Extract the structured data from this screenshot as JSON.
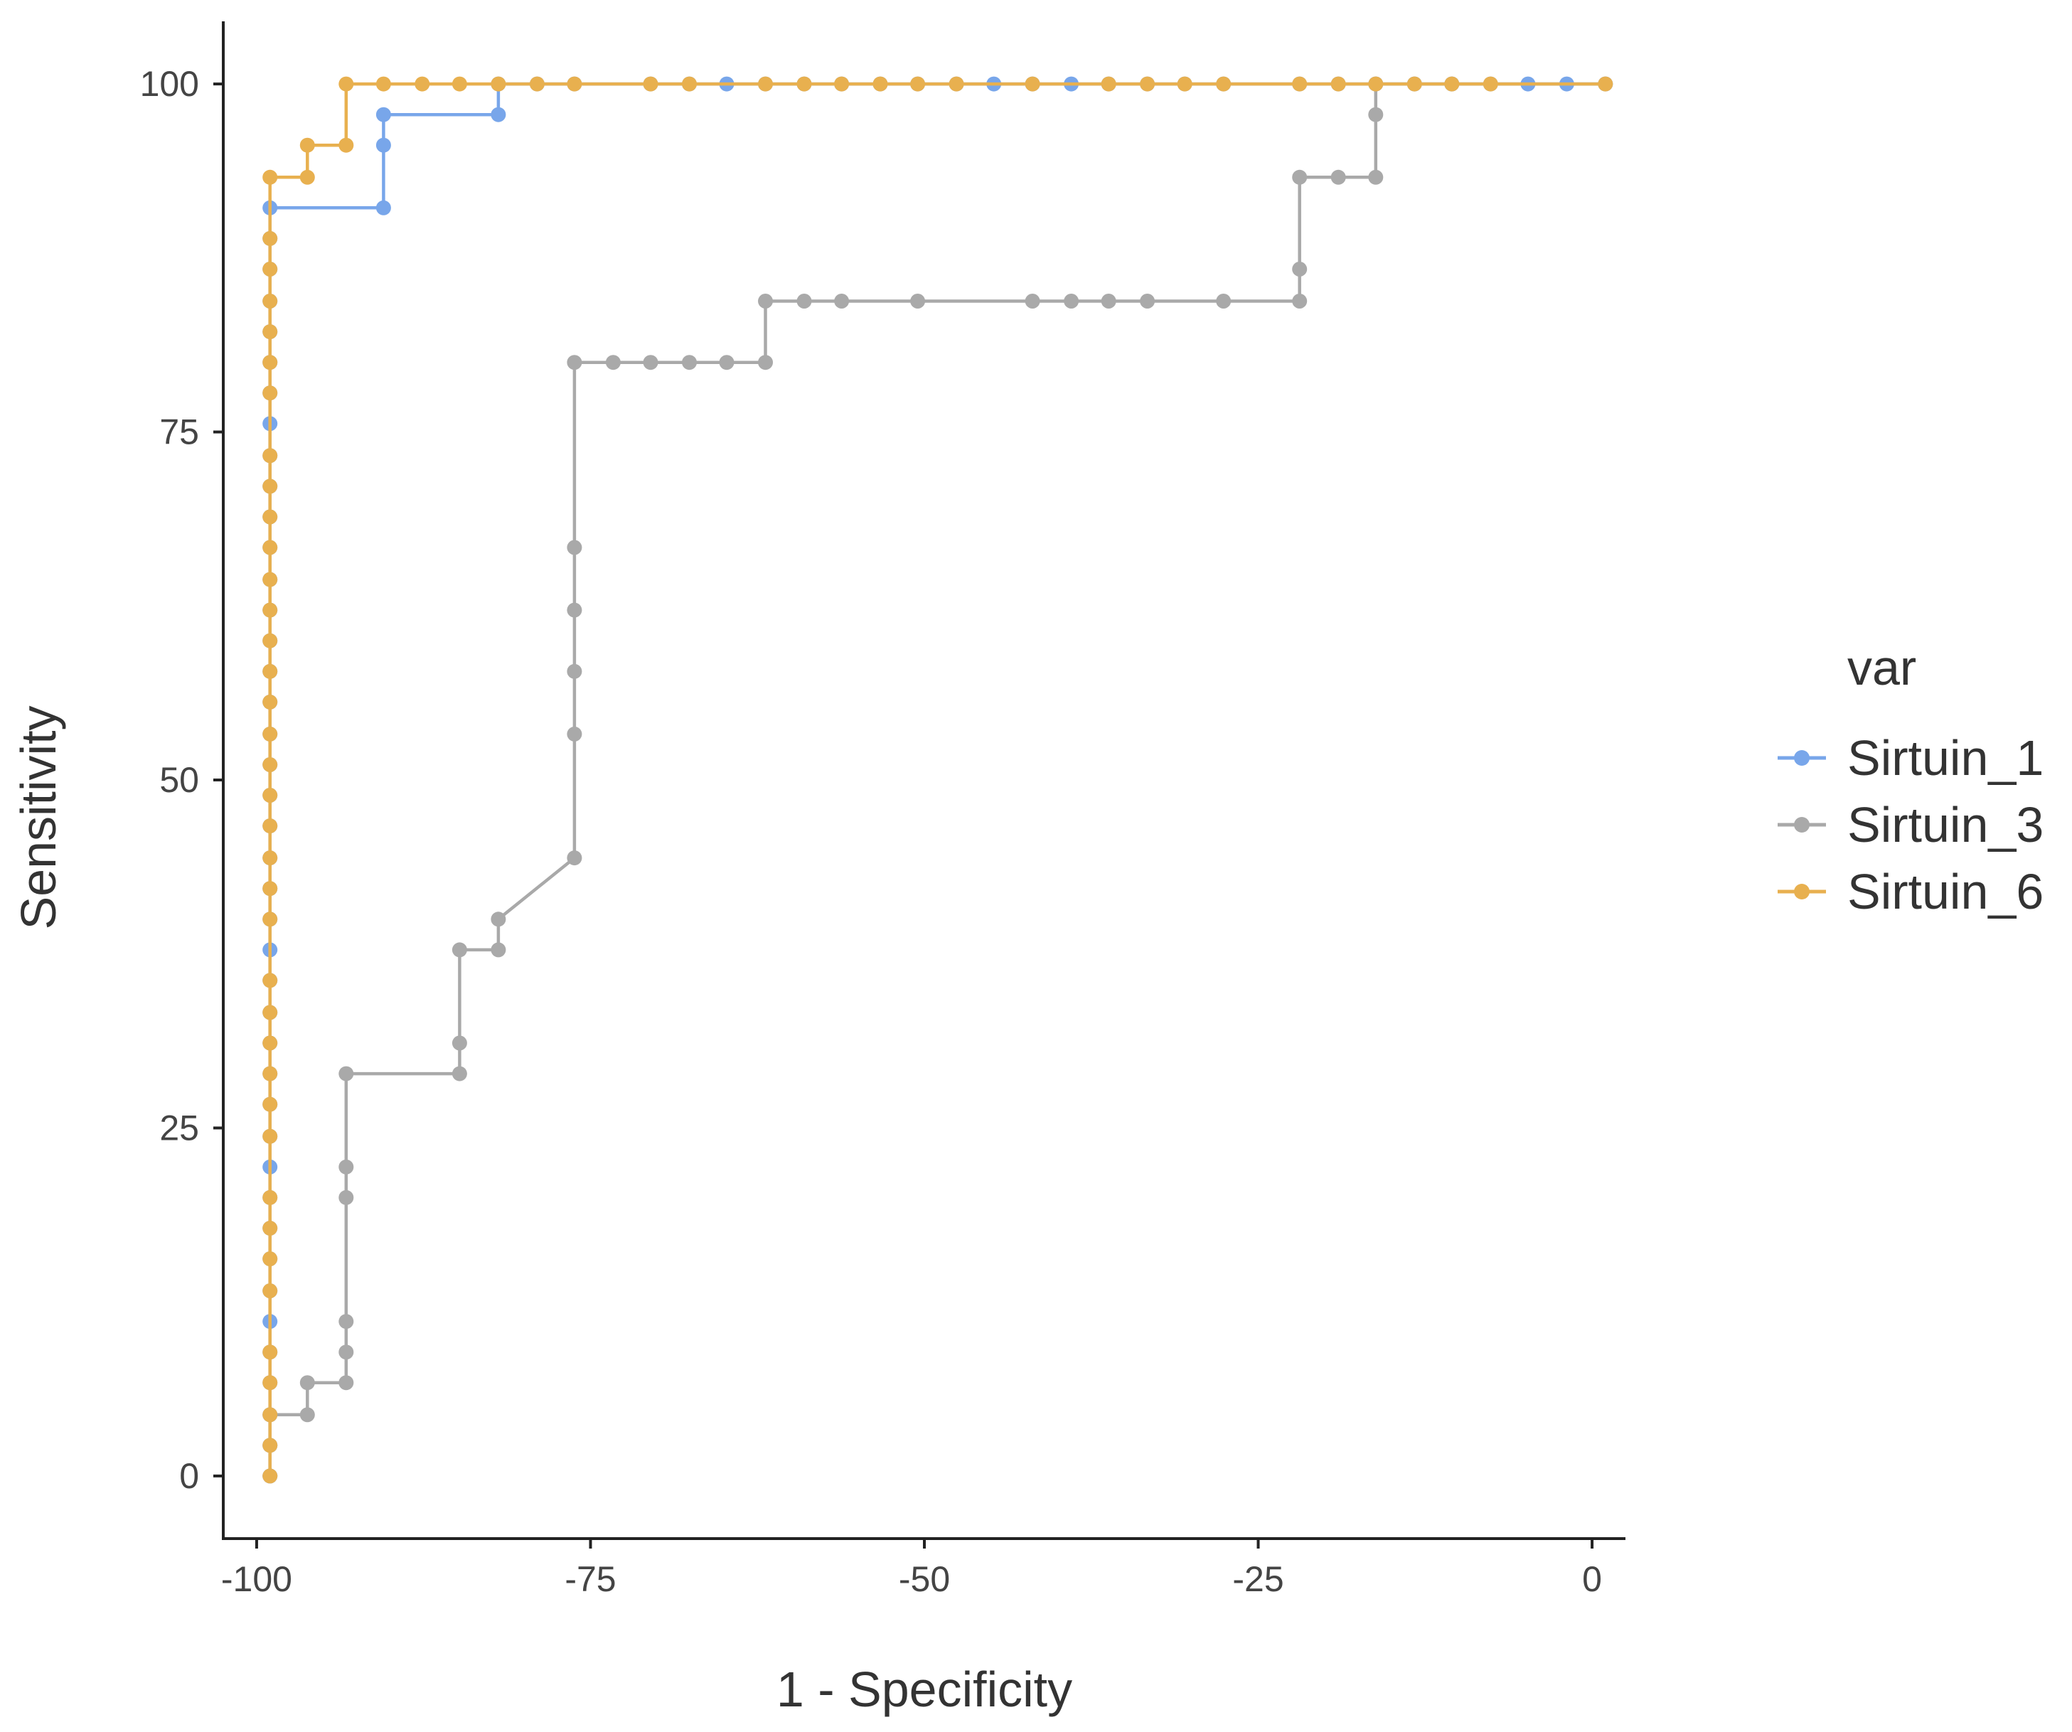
{
  "chart_data": {
    "type": "line",
    "step": true,
    "title": "",
    "xlabel": "1 - Specificity",
    "ylabel": "Sensitivity",
    "xlim": [
      -102.5,
      2.5
    ],
    "ylim": [
      -4.5,
      104.5
    ],
    "xticks": [
      -100,
      -75,
      -50,
      -25,
      0
    ],
    "xtick_labels": [
      "-100",
      "-75",
      "-50",
      "-25",
      "0"
    ],
    "yticks": [
      0,
      25,
      50,
      75,
      100
    ],
    "ytick_labels": [
      "0",
      "25",
      "50",
      "75",
      "100"
    ],
    "grid": false,
    "legend": {
      "title": "var",
      "position": "right",
      "entries": [
        "Sirtuin_1",
        "Sirtuin_3",
        "Sirtuin_6"
      ]
    },
    "series": [
      {
        "name": "Sirtuin_1",
        "color": "#78a6ea",
        "points": [
          [
            -99,
            0
          ],
          [
            -99,
            2.2
          ],
          [
            -99,
            4.4
          ],
          [
            -99,
            6.7
          ],
          [
            -99,
            8.9
          ],
          [
            -99,
            11.1
          ],
          [
            -99,
            13.3
          ],
          [
            -99,
            15.6
          ],
          [
            -99,
            17.8
          ],
          [
            -99,
            20
          ],
          [
            -99,
            22.2
          ],
          [
            -99,
            24.4
          ],
          [
            -99,
            26.7
          ],
          [
            -99,
            28.9
          ],
          [
            -99,
            31.1
          ],
          [
            -99,
            33.3
          ],
          [
            -99,
            35.6
          ],
          [
            -99,
            37.8
          ],
          [
            -99,
            40
          ],
          [
            -99,
            42.2
          ],
          [
            -99,
            44.4
          ],
          [
            -99,
            46.7
          ],
          [
            -99,
            48.9
          ],
          [
            -99,
            51.1
          ],
          [
            -99,
            53.3
          ],
          [
            -99,
            55.6
          ],
          [
            -99,
            57.8
          ],
          [
            -99,
            60
          ],
          [
            -99,
            62.2
          ],
          [
            -99,
            64.4
          ],
          [
            -99,
            66.7
          ],
          [
            -99,
            68.9
          ],
          [
            -99,
            71.1
          ],
          [
            -99,
            73.3
          ],
          [
            -99,
            75.6
          ],
          [
            -99,
            77.8
          ],
          [
            -99,
            80
          ],
          [
            -99,
            82.2
          ],
          [
            -99,
            84.4
          ],
          [
            -99,
            86.7
          ],
          [
            -99,
            88.9
          ],
          [
            -99,
            91.1
          ],
          [
            -90.5,
            91.1
          ],
          [
            -90.5,
            95.6
          ],
          [
            -90.5,
            97.8
          ],
          [
            -81.9,
            97.8
          ],
          [
            -81.9,
            100
          ],
          [
            -79,
            100
          ],
          [
            -76.2,
            100
          ],
          [
            -70.5,
            100
          ],
          [
            -67.6,
            100
          ],
          [
            -64.8,
            100
          ],
          [
            -61.9,
            100
          ],
          [
            -59,
            100
          ],
          [
            -56.2,
            100
          ],
          [
            -53.3,
            100
          ],
          [
            -50.5,
            100
          ],
          [
            -47.6,
            100
          ],
          [
            -44.8,
            100
          ],
          [
            -41.9,
            100
          ],
          [
            -39,
            100
          ],
          [
            -36.2,
            100
          ],
          [
            -33.3,
            100
          ],
          [
            -30.5,
            100
          ],
          [
            -27.6,
            100
          ],
          [
            -21.9,
            100
          ],
          [
            -19,
            100
          ],
          [
            -16.2,
            100
          ],
          [
            -13.3,
            100
          ],
          [
            -10.5,
            100
          ],
          [
            -7.6,
            100
          ],
          [
            -4.8,
            100
          ],
          [
            -1.9,
            100
          ],
          [
            1,
            100
          ]
        ]
      },
      {
        "name": "Sirtuin_3",
        "color": "#a9a9a9",
        "points": [
          [
            -99,
            0
          ],
          [
            -99,
            2.2
          ],
          [
            -99,
            4.4
          ],
          [
            -96.2,
            4.4
          ],
          [
            -96.2,
            6.7
          ],
          [
            -93.3,
            6.7
          ],
          [
            -93.3,
            8.9
          ],
          [
            -93.3,
            11.1
          ],
          [
            -93.3,
            20
          ],
          [
            -93.3,
            22.2
          ],
          [
            -93.3,
            28.9
          ],
          [
            -84.8,
            28.9
          ],
          [
            -84.8,
            31.1
          ],
          [
            -84.8,
            37.8
          ],
          [
            -81.9,
            37.8
          ],
          [
            -81.9,
            40
          ],
          [
            -76.2,
            44.4
          ],
          [
            -76.2,
            53.3
          ],
          [
            -76.2,
            57.8
          ],
          [
            -76.2,
            62.2
          ],
          [
            -76.2,
            66.7
          ],
          [
            -76.2,
            80
          ],
          [
            -73.3,
            80
          ],
          [
            -70.5,
            80
          ],
          [
            -67.6,
            80
          ],
          [
            -64.8,
            80
          ],
          [
            -61.9,
            80
          ],
          [
            -61.9,
            84.4
          ],
          [
            -59,
            84.4
          ],
          [
            -56.2,
            84.4
          ],
          [
            -50.5,
            84.4
          ],
          [
            -41.9,
            84.4
          ],
          [
            -39,
            84.4
          ],
          [
            -36.2,
            84.4
          ],
          [
            -33.3,
            84.4
          ],
          [
            -27.6,
            84.4
          ],
          [
            -21.9,
            84.4
          ],
          [
            -21.9,
            86.7
          ],
          [
            -21.9,
            93.3
          ],
          [
            -19,
            93.3
          ],
          [
            -16.2,
            93.3
          ],
          [
            -16.2,
            97.8
          ],
          [
            -16.2,
            100
          ],
          [
            -13.3,
            100
          ],
          [
            -10.5,
            100
          ],
          [
            1,
            100
          ]
        ]
      },
      {
        "name": "Sirtuin_6",
        "color": "#e8b04f",
        "points": [
          [
            -99,
            0
          ],
          [
            -99,
            2.2
          ],
          [
            -99,
            4.4
          ],
          [
            -99,
            6.7
          ],
          [
            -99,
            8.9
          ],
          [
            -99,
            13.3
          ],
          [
            -99,
            15.6
          ],
          [
            -99,
            17.8
          ],
          [
            -99,
            20
          ],
          [
            -99,
            24.4
          ],
          [
            -99,
            26.7
          ],
          [
            -99,
            28.9
          ],
          [
            -99,
            31.1
          ],
          [
            -99,
            33.3
          ],
          [
            -99,
            35.6
          ],
          [
            -99,
            40
          ],
          [
            -99,
            42.2
          ],
          [
            -99,
            44.4
          ],
          [
            -99,
            46.7
          ],
          [
            -99,
            48.9
          ],
          [
            -99,
            51.1
          ],
          [
            -99,
            53.3
          ],
          [
            -99,
            55.6
          ],
          [
            -99,
            57.8
          ],
          [
            -99,
            60
          ],
          [
            -99,
            62.2
          ],
          [
            -99,
            64.4
          ],
          [
            -99,
            66.7
          ],
          [
            -99,
            68.9
          ],
          [
            -99,
            71.1
          ],
          [
            -99,
            73.3
          ],
          [
            -99,
            77.8
          ],
          [
            -99,
            80
          ],
          [
            -99,
            82.2
          ],
          [
            -99,
            84.4
          ],
          [
            -99,
            86.7
          ],
          [
            -99,
            88.9
          ],
          [
            -99,
            93.3
          ],
          [
            -96.2,
            93.3
          ],
          [
            -96.2,
            95.6
          ],
          [
            -93.3,
            95.6
          ],
          [
            -93.3,
            100
          ],
          [
            -90.5,
            100
          ],
          [
            -87.6,
            100
          ],
          [
            -84.8,
            100
          ],
          [
            -81.9,
            100
          ],
          [
            -79,
            100
          ],
          [
            -76.2,
            100
          ],
          [
            -70.5,
            100
          ],
          [
            -67.6,
            100
          ],
          [
            -61.9,
            100
          ],
          [
            -59,
            100
          ],
          [
            -56.2,
            100
          ],
          [
            -53.3,
            100
          ],
          [
            -50.5,
            100
          ],
          [
            -47.6,
            100
          ],
          [
            -41.9,
            100
          ],
          [
            -36.2,
            100
          ],
          [
            -33.3,
            100
          ],
          [
            -30.5,
            100
          ],
          [
            -27.6,
            100
          ],
          [
            -21.9,
            100
          ],
          [
            -19,
            100
          ],
          [
            -16.2,
            100
          ],
          [
            -13.3,
            100
          ],
          [
            -10.5,
            100
          ],
          [
            -7.6,
            100
          ],
          [
            1,
            100
          ]
        ]
      }
    ]
  }
}
